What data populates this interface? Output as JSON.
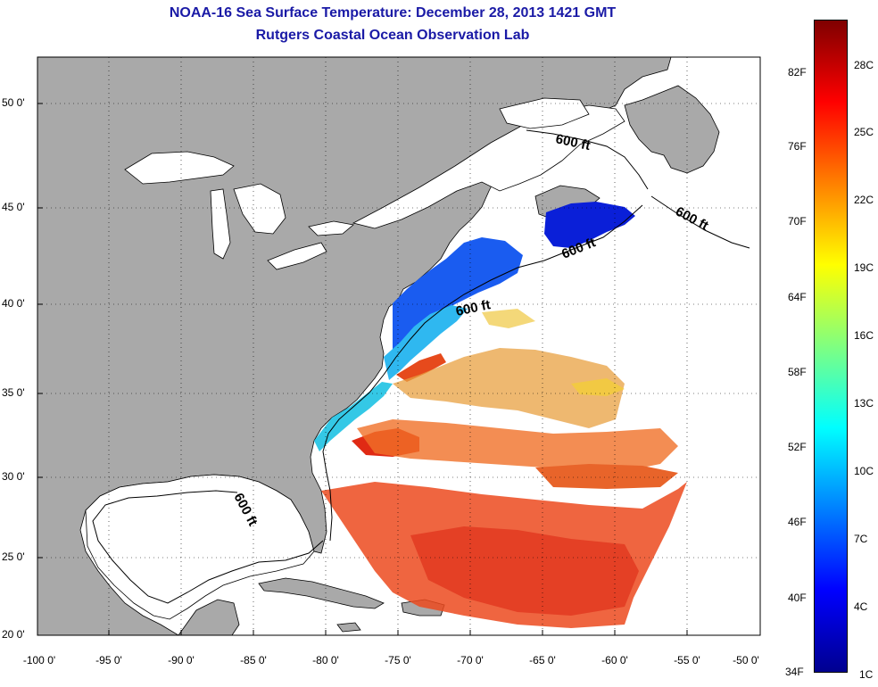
{
  "title": {
    "line1": "NOAA-16 Sea Surface Temperature:  December 28, 2013 1421 GMT",
    "line2": "Rutgers Coastal Ocean Observation Lab"
  },
  "axes": {
    "lat_ticks": [
      "50 0'",
      "45 0'",
      "40 0'",
      "35 0'",
      "30 0'",
      "25 0'",
      "20 0'"
    ],
    "lon_ticks": [
      "-100 0'",
      "-95 0'",
      "-90 0'",
      "-85 0'",
      "-80 0'",
      "-75 0'",
      "-70 0'",
      "-65 0'",
      "-60 0'",
      "-55 0'",
      "-50 0'"
    ]
  },
  "contour_label": "600 ft",
  "colorbar": {
    "fahrenheit": [
      "82F",
      "76F",
      "70F",
      "64F",
      "58F",
      "52F",
      "46F",
      "40F",
      "34F"
    ],
    "celsius": [
      "28C",
      "25C",
      "22C",
      "19C",
      "16C",
      "13C",
      "10C",
      "7C",
      "4C",
      "1C"
    ],
    "colors": [
      "#7f0000",
      "#ff0000",
      "#ff8000",
      "#ffff00",
      "#80ff80",
      "#00ffff",
      "#0080ff",
      "#0000ff",
      "#00008f"
    ]
  },
  "colors": {
    "land": "#a9a9a9",
    "ocean_nodata": "#ffffff",
    "title": "#1a1aa6"
  }
}
